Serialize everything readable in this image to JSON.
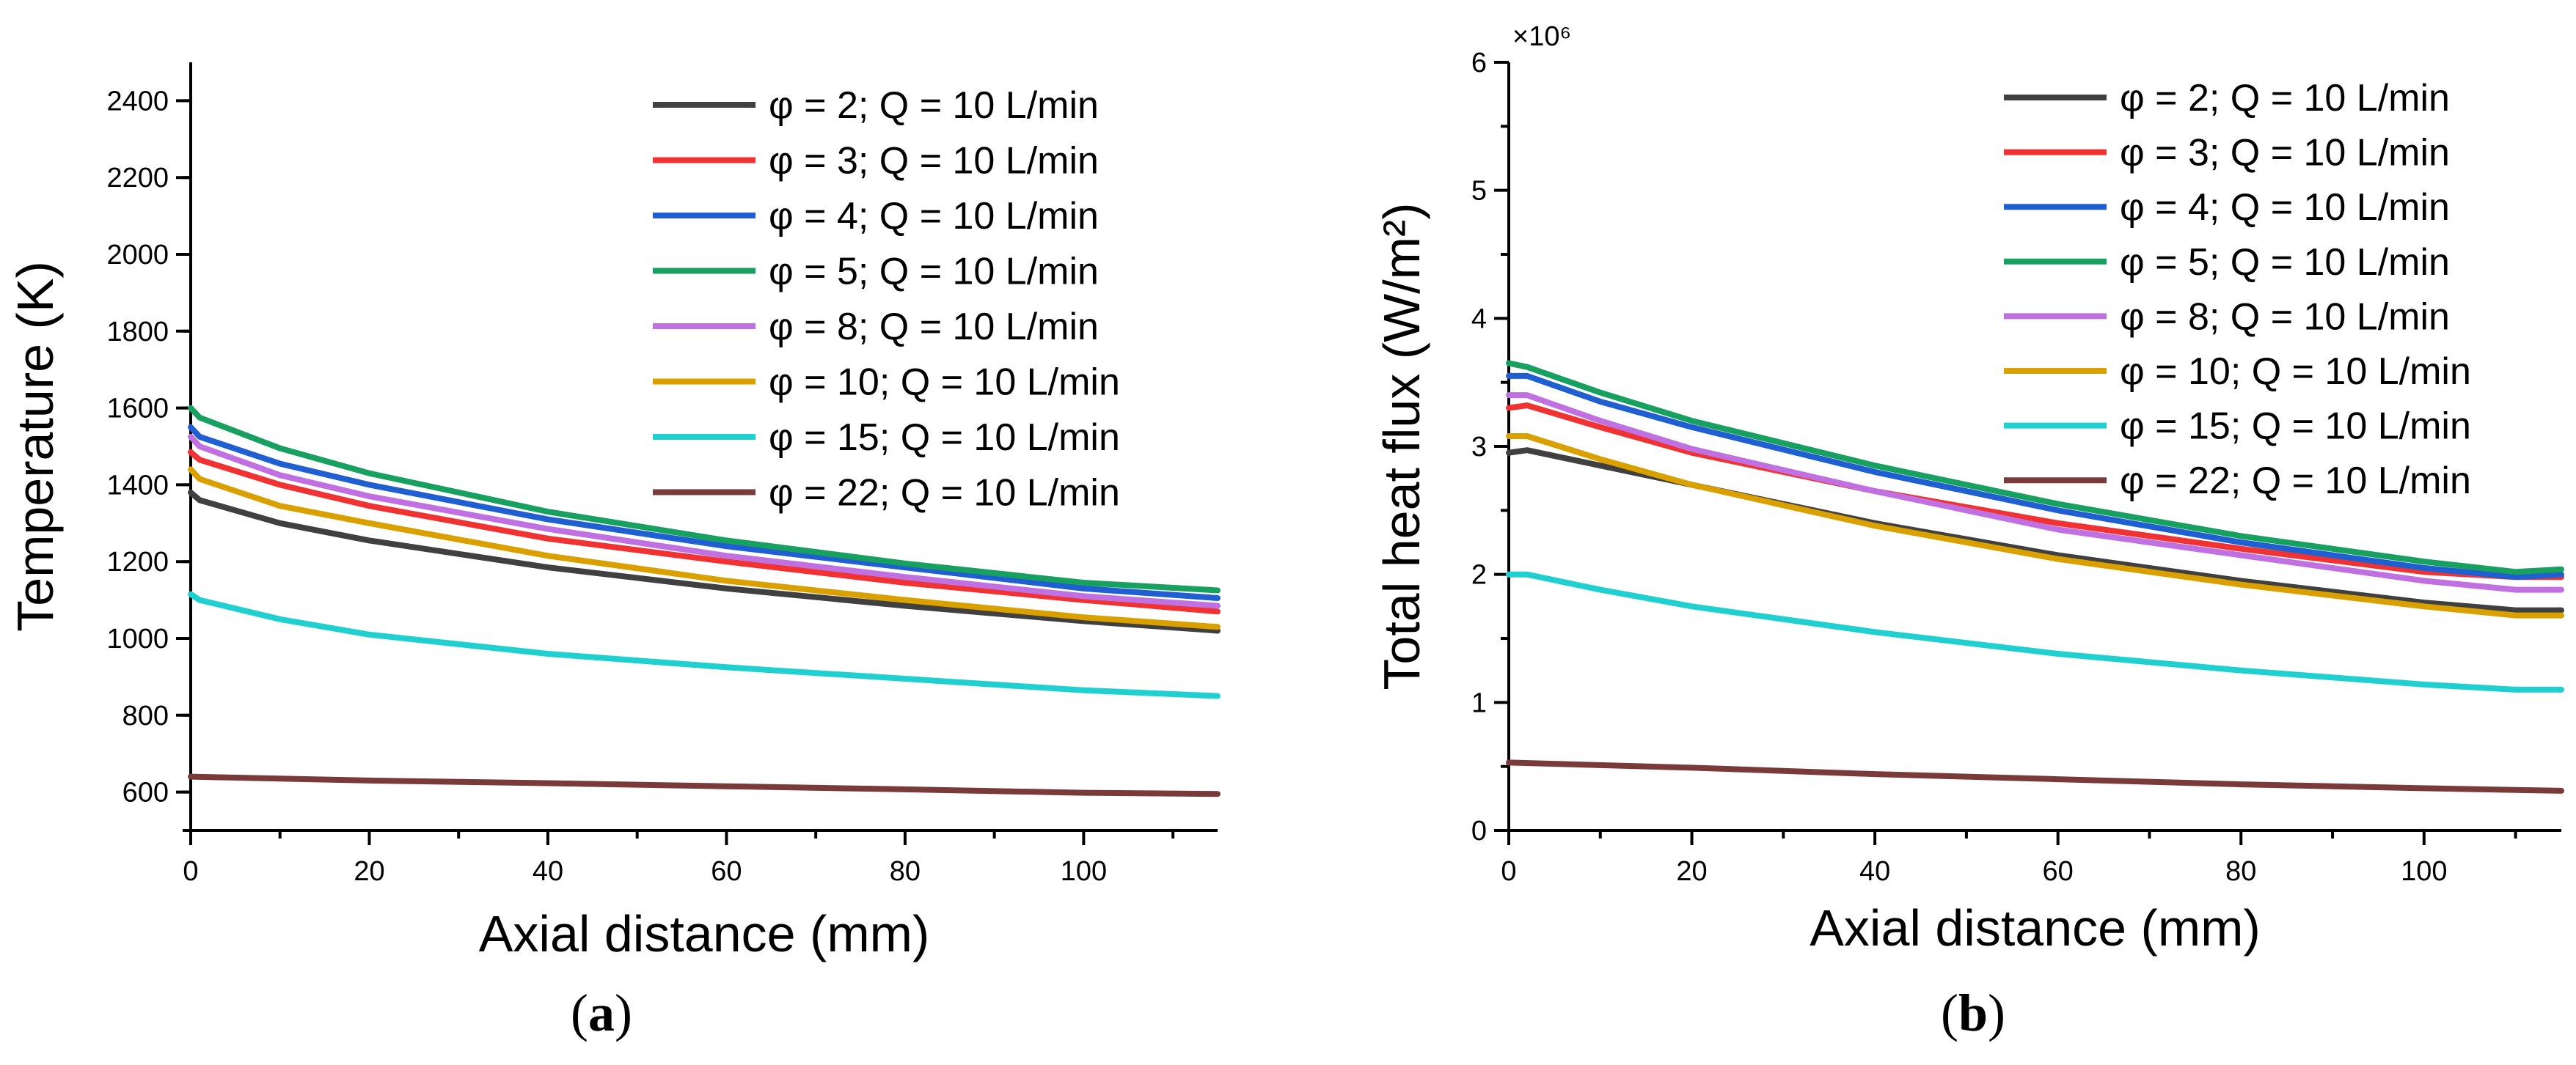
{
  "colors": [
    "#404040",
    "#f03232",
    "#1f5fd1",
    "#18a060",
    "#c070e0",
    "#d9a000",
    "#20d0d0",
    "#7a3a3a"
  ],
  "chart_data": [
    {
      "type": "line",
      "panel_label": "a",
      "xlabel": "Axial distance (mm)",
      "ylabel": "Temperature (K)",
      "multiplier": "",
      "xlim": [
        0,
        115
      ],
      "ylim": [
        500,
        2500
      ],
      "xticks": [
        0,
        20,
        40,
        60,
        80,
        100
      ],
      "yticks": [
        600,
        800,
        1000,
        1200,
        1400,
        1600,
        1800,
        2000,
        2200,
        2400
      ],
      "legend_position": "top-right",
      "series": [
        {
          "name": "φ = 2; Q = 10 L/min",
          "x": [
            0,
            1,
            10,
            20,
            40,
            60,
            80,
            100,
            115
          ],
          "y": [
            1380,
            1360,
            1300,
            1255,
            1185,
            1130,
            1085,
            1045,
            1020
          ]
        },
        {
          "name": "φ = 3; Q = 10 L/min",
          "x": [
            0,
            1,
            10,
            20,
            40,
            60,
            80,
            100,
            115
          ],
          "y": [
            1485,
            1465,
            1400,
            1345,
            1260,
            1200,
            1145,
            1100,
            1070
          ]
        },
        {
          "name": "φ = 4; Q = 10 L/min",
          "x": [
            0,
            1,
            10,
            20,
            40,
            60,
            80,
            100,
            115
          ],
          "y": [
            1550,
            1525,
            1455,
            1400,
            1310,
            1240,
            1185,
            1130,
            1105
          ]
        },
        {
          "name": "φ = 5; Q = 10 L/min",
          "x": [
            0,
            1,
            10,
            20,
            40,
            60,
            80,
            100,
            115
          ],
          "y": [
            1600,
            1575,
            1495,
            1430,
            1330,
            1255,
            1195,
            1145,
            1125
          ]
        },
        {
          "name": "φ = 8; Q = 10 L/min",
          "x": [
            0,
            1,
            10,
            20,
            40,
            60,
            80,
            100,
            115
          ],
          "y": [
            1525,
            1500,
            1425,
            1370,
            1285,
            1215,
            1160,
            1110,
            1085
          ]
        },
        {
          "name": "φ = 10; Q = 10 L/min",
          "x": [
            0,
            1,
            10,
            20,
            40,
            60,
            80,
            100,
            115
          ],
          "y": [
            1440,
            1415,
            1345,
            1300,
            1215,
            1150,
            1100,
            1055,
            1030
          ]
        },
        {
          "name": "φ = 15; Q = 10 L/min",
          "x": [
            0,
            1,
            10,
            20,
            40,
            60,
            80,
            100,
            115
          ],
          "y": [
            1115,
            1100,
            1050,
            1010,
            960,
            925,
            895,
            865,
            850
          ]
        },
        {
          "name": "φ = 22; Q = 10 L/min",
          "x": [
            0,
            20,
            40,
            60,
            80,
            100,
            115
          ],
          "y": [
            640,
            630,
            623,
            615,
            607,
            598,
            595
          ]
        }
      ]
    },
    {
      "type": "line",
      "panel_label": "b",
      "xlabel": "Axial distance (mm)",
      "ylabel": "Total heat flux (W/m²)",
      "multiplier": "×10⁶",
      "xlim": [
        0,
        115
      ],
      "ylim": [
        0,
        6
      ],
      "xticks": [
        0,
        20,
        40,
        60,
        80,
        100
      ],
      "yticks": [
        0,
        1,
        2,
        3,
        4,
        5,
        6
      ],
      "legend_position": "top-right",
      "series": [
        {
          "name": "φ = 2; Q = 10 L/min",
          "x": [
            0,
            2,
            10,
            20,
            40,
            60,
            80,
            100,
            110,
            115
          ],
          "y": [
            2.95,
            2.97,
            2.85,
            2.7,
            2.4,
            2.15,
            1.95,
            1.78,
            1.72,
            1.72
          ]
        },
        {
          "name": "φ = 3; Q = 10 L/min",
          "x": [
            0,
            2,
            10,
            20,
            40,
            60,
            80,
            100,
            110,
            115
          ],
          "y": [
            3.3,
            3.32,
            3.15,
            2.95,
            2.65,
            2.4,
            2.2,
            2.02,
            1.98,
            1.98
          ]
        },
        {
          "name": "φ = 4; Q = 10 L/min",
          "x": [
            0,
            2,
            10,
            20,
            40,
            60,
            80,
            100,
            110,
            115
          ],
          "y": [
            3.55,
            3.55,
            3.35,
            3.15,
            2.8,
            2.5,
            2.25,
            2.05,
            1.98,
            2.0
          ]
        },
        {
          "name": "φ = 5; Q = 10 L/min",
          "x": [
            0,
            2,
            10,
            20,
            40,
            60,
            80,
            100,
            110,
            115
          ],
          "y": [
            3.65,
            3.62,
            3.42,
            3.2,
            2.85,
            2.55,
            2.3,
            2.1,
            2.02,
            2.04
          ]
        },
        {
          "name": "φ = 8; Q = 10 L/min",
          "x": [
            0,
            2,
            10,
            20,
            40,
            60,
            80,
            100,
            110,
            115
          ],
          "y": [
            3.4,
            3.4,
            3.2,
            2.98,
            2.65,
            2.35,
            2.15,
            1.95,
            1.88,
            1.88
          ]
        },
        {
          "name": "φ = 10; Q = 10 L/min",
          "x": [
            0,
            2,
            10,
            20,
            40,
            60,
            80,
            100,
            110,
            115
          ],
          "y": [
            3.08,
            3.08,
            2.9,
            2.7,
            2.38,
            2.12,
            1.92,
            1.75,
            1.68,
            1.68
          ]
        },
        {
          "name": "φ = 15; Q = 10 L/min",
          "x": [
            0,
            2,
            10,
            20,
            40,
            60,
            80,
            100,
            110,
            115
          ],
          "y": [
            2.0,
            2.0,
            1.88,
            1.75,
            1.55,
            1.38,
            1.25,
            1.14,
            1.1,
            1.1
          ]
        },
        {
          "name": "φ = 22; Q = 10 L/min",
          "x": [
            0,
            20,
            40,
            60,
            80,
            100,
            115
          ],
          "y": [
            0.53,
            0.49,
            0.44,
            0.4,
            0.36,
            0.33,
            0.31
          ]
        }
      ]
    }
  ]
}
